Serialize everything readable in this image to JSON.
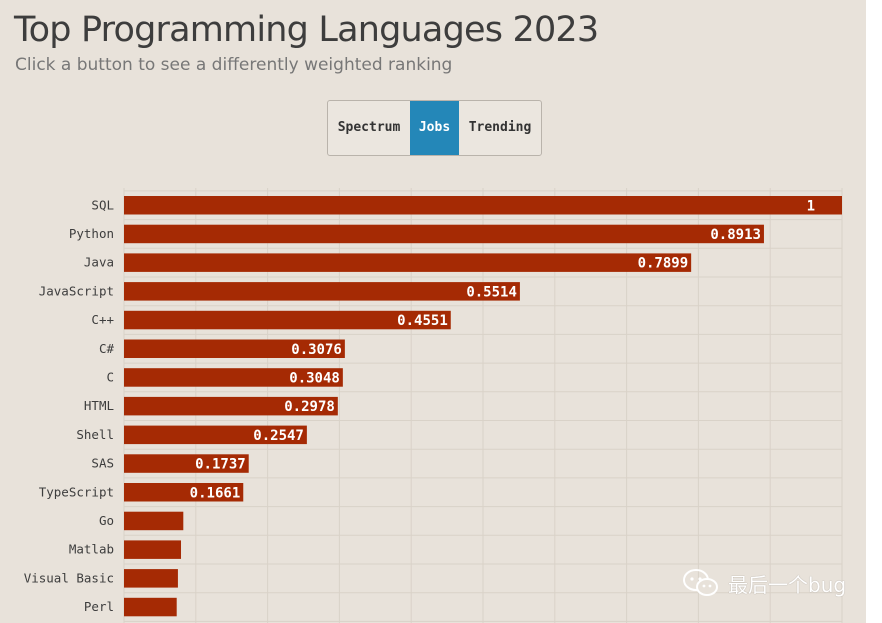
{
  "title": "Top Programming Languages 2023",
  "subtitle": "Click a button to see a differently weighted ranking",
  "buttons": [
    {
      "label": "Spectrum",
      "active": false
    },
    {
      "label": "Jobs",
      "active": true
    },
    {
      "label": "Trending",
      "active": false
    }
  ],
  "colors": {
    "bar": "#a52a04",
    "active_button": "#2487b8",
    "background": "#e8e2da",
    "gridline": "#d9d2c8"
  },
  "watermark": {
    "icon": "wechat-icon",
    "text": "最后一个bug"
  },
  "chart_data": {
    "type": "bar",
    "orientation": "horizontal",
    "categories": [
      "SQL",
      "Python",
      "Java",
      "JavaScript",
      "C++",
      "C#",
      "C",
      "HTML",
      "Shell",
      "SAS",
      "TypeScript",
      "Go",
      "Matlab",
      "Visual Basic",
      "Perl"
    ],
    "values": [
      1,
      0.8913,
      0.7899,
      0.5514,
      0.4551,
      0.3076,
      0.3048,
      0.2978,
      0.2547,
      0.1737,
      0.1661,
      0.0826,
      0.0794,
      0.0751,
      0.0734
    ],
    "value_labels": [
      "1",
      "0.8913",
      "0.7899",
      "0.5514",
      "0.4551",
      "0.3076",
      "0.3048",
      "0.2978",
      "0.2547",
      "0.1737",
      "0.1661",
      "",
      "",
      "",
      ""
    ],
    "xlim": [
      0,
      1
    ],
    "grid": true
  }
}
